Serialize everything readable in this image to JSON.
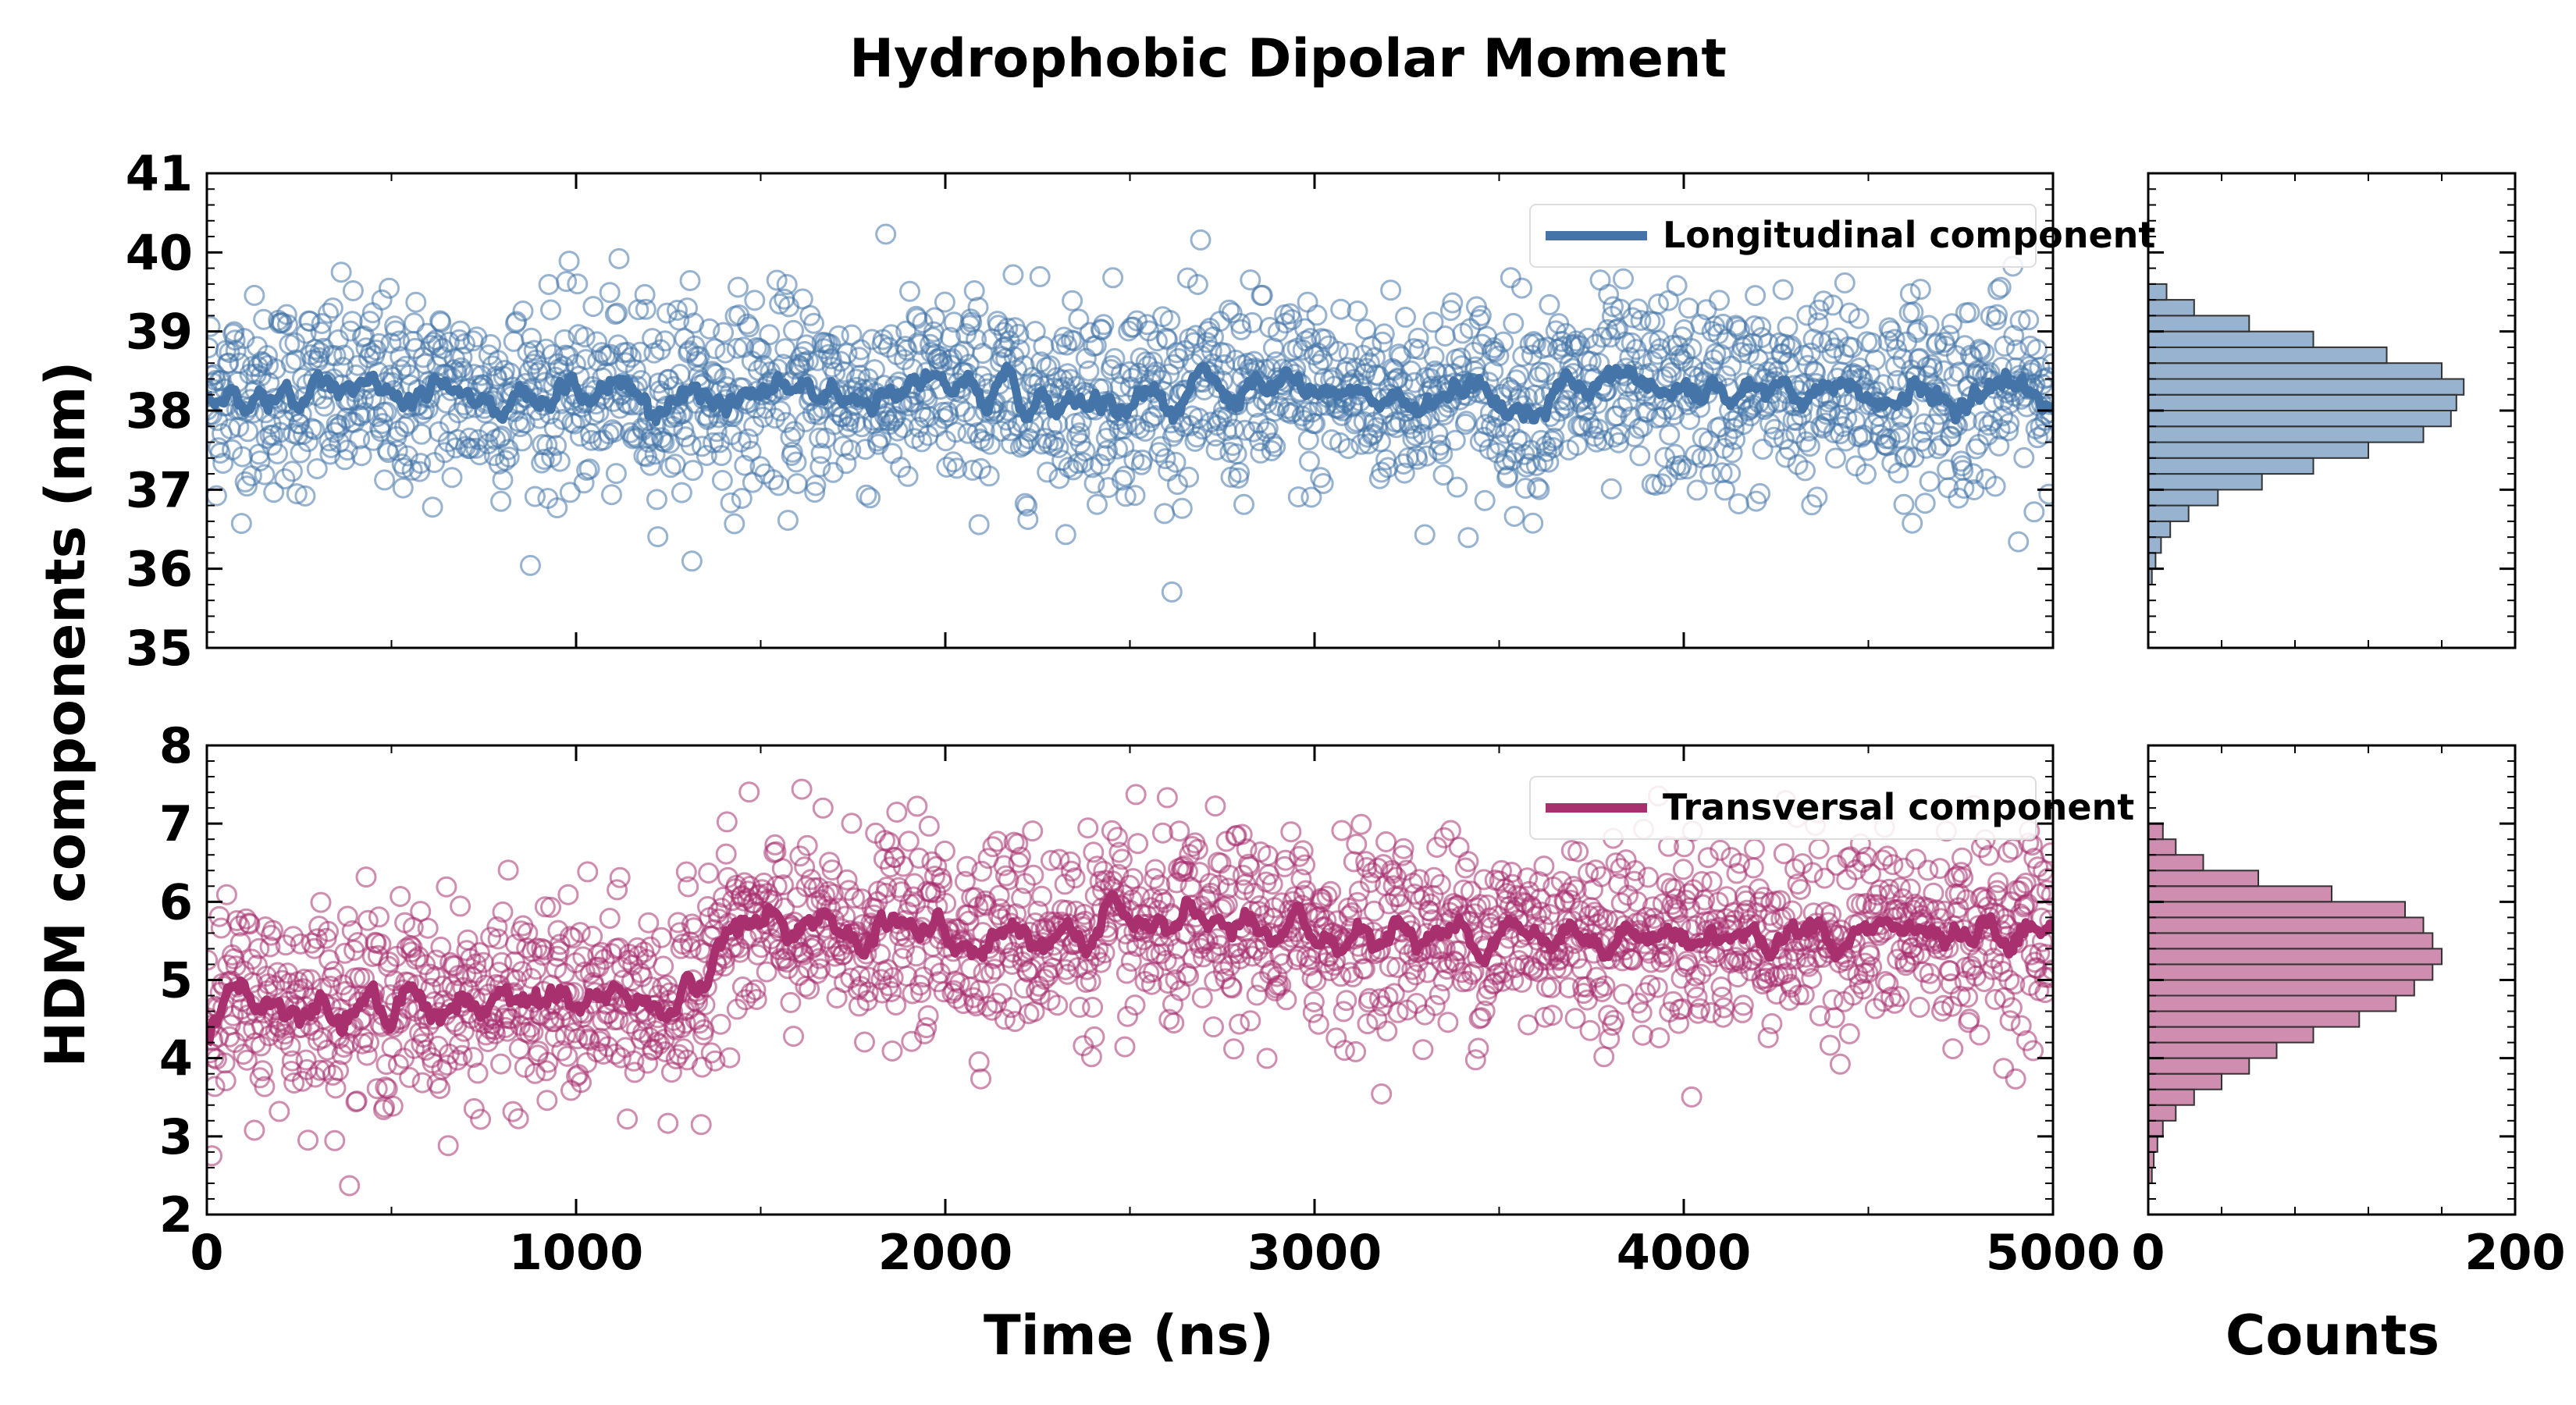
{
  "chart_data": {
    "type": "scatter",
    "title": "Hydrophobic Dipolar Moment",
    "ylabel": "HDM components (nm)",
    "xlabel": "Time (ns)",
    "hist_xlabel": "Counts",
    "xlim": [
      0,
      5000
    ],
    "xticks": [
      "0",
      "1000",
      "2000",
      "3000",
      "4000",
      "5000"
    ],
    "hist_xlim": [
      0,
      200
    ],
    "hist_xticks": [
      "0",
      "200"
    ],
    "colors": {
      "longitudinal": "#4474a8",
      "transversal": "#a8306f"
    },
    "panels": [
      {
        "name": "longitudinal",
        "legend": "Longitudinal component",
        "ylim": [
          35,
          41
        ],
        "yticks": [
          "35",
          "36",
          "37",
          "38",
          "39",
          "40",
          "41"
        ],
        "series": {
          "scatter_mean": 38.2,
          "scatter_spread": 0.62,
          "running_average": 38.2,
          "running_average_window_ns": 25
        },
        "histogram": {
          "bin_centers": [
            35.9,
            36.1,
            36.3,
            36.5,
            36.7,
            36.9,
            37.1,
            37.3,
            37.5,
            37.7,
            37.9,
            38.1,
            38.3,
            38.5,
            38.7,
            38.9,
            39.1,
            39.3,
            39.5
          ],
          "counts": [
            2,
            4,
            7,
            12,
            22,
            38,
            62,
            90,
            120,
            150,
            165,
            168,
            172,
            160,
            130,
            90,
            55,
            25,
            10
          ]
        }
      },
      {
        "name": "transversal",
        "legend": "Transversal component",
        "ylim": [
          2,
          8
        ],
        "yticks": [
          "2",
          "3",
          "4",
          "5",
          "6",
          "7",
          "8"
        ],
        "series": {
          "segments": [
            {
              "t_start": 0,
              "t_end": 1350,
              "mean": 4.7
            },
            {
              "t_start": 1350,
              "t_end": 5000,
              "mean": 5.6
            }
          ],
          "scatter_spread": 0.62,
          "running_average_window_ns": 25
        },
        "histogram": {
          "bin_centers": [
            2.5,
            2.7,
            2.9,
            3.1,
            3.3,
            3.5,
            3.7,
            3.9,
            4.1,
            4.3,
            4.5,
            4.7,
            4.9,
            5.1,
            5.3,
            5.5,
            5.7,
            5.9,
            6.1,
            6.3,
            6.5,
            6.7,
            6.9
          ],
          "counts": [
            2,
            3,
            5,
            8,
            15,
            25,
            40,
            55,
            70,
            90,
            115,
            135,
            145,
            155,
            160,
            155,
            150,
            140,
            100,
            60,
            30,
            15,
            8
          ]
        }
      }
    ]
  }
}
